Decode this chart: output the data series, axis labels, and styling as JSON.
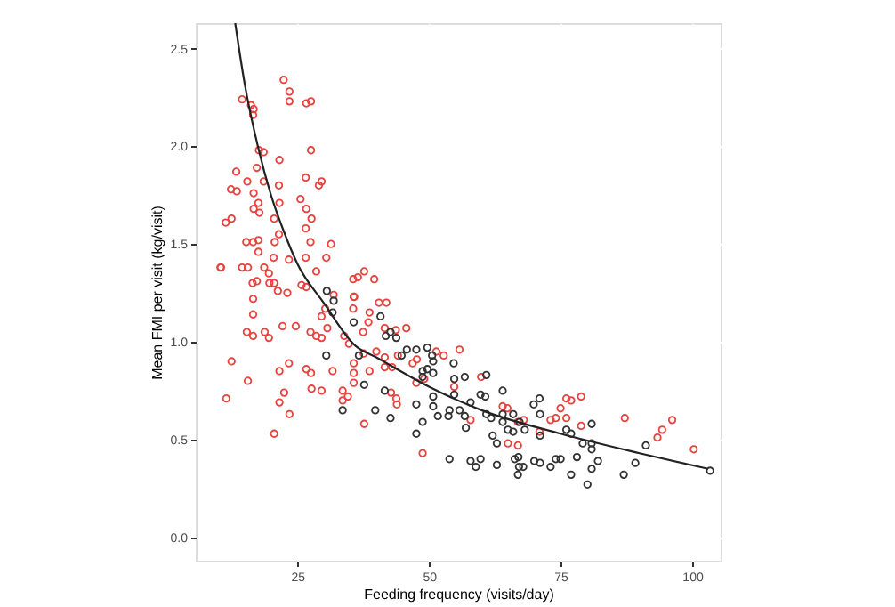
{
  "chart_data": {
    "type": "scatter",
    "xlabel": "Feeding frequency (visits/day)",
    "ylabel": "Mean FMI per visit (kg/visit)",
    "xlim": [
      5.7,
      105.4
    ],
    "ylim": [
      -0.12,
      2.63
    ],
    "xticks": [
      25,
      50,
      75,
      100
    ],
    "yticks": [
      {
        "value": 0,
        "label": "0.0"
      },
      {
        "value": 0.5,
        "label": "0.5"
      },
      {
        "value": 1,
        "label": "1.0"
      },
      {
        "value": 1.5,
        "label": "1.5"
      },
      {
        "value": 2,
        "label": "2.0"
      },
      {
        "value": 2.5,
        "label": "2.5"
      }
    ],
    "grid": true,
    "marker": "circle",
    "series": [
      {
        "color": "#e8433f",
        "x": [
          22.4,
          23.5,
          23.5,
          14.5,
          16.2,
          16.7,
          16.6,
          26.7,
          27.6,
          27.6,
          17.7,
          18.6,
          21.6,
          13.4,
          17.3,
          15.5,
          18.6,
          21.5,
          26.6,
          29.6,
          29.1,
          12.4,
          13.5,
          16.7,
          25.6,
          17.6,
          21.6,
          16.7,
          26.7,
          17.8,
          27.7,
          20.6,
          12.5,
          11.4,
          26.6,
          21.5,
          15.3,
          16.6,
          17.6,
          20.7,
          27.5,
          31.4,
          30.5,
          26.6,
          23.4,
          20.5,
          17.6,
          10.5,
          14.5,
          15.6,
          18.7,
          19.6,
          28.6,
          16.5,
          17.3,
          19.7,
          20.6,
          25.8,
          26.7,
          35.6,
          36.5,
          37.7,
          39.6,
          35.8,
          10.4,
          16.6,
          21.3,
          23.1,
          16.6,
          15.4,
          16.6,
          18.8,
          19.6,
          22.2,
          24.7,
          27.5,
          28.6,
          29.6,
          30.7,
          29.6,
          31.9,
          30.3,
          12.5,
          15.6,
          11.5,
          21.6,
          23.4,
          22.5,
          21.6,
          23.5,
          20.6,
          26.7,
          27.6,
          27.7,
          29.6,
          31.7,
          33.6,
          33.6,
          34.6,
          35.7,
          35.7,
          34.8,
          33.9,
          35.7,
          37.7,
          37.6,
          38.7,
          37.5,
          38.7,
          38.5,
          35.7,
          35.6,
          40.5,
          41.9,
          41.6,
          43.7,
          45.7,
          40.0,
          41.6,
          43.0,
          44.1,
          41.6,
          42.8,
          43.9,
          43.8,
          48.8,
          46.9,
          47.7,
          49.1,
          51.4,
          47.6,
          52.8,
          55.8,
          54.8,
          59.9,
          57.9,
          64.0,
          64.9,
          66.9,
          68.0,
          65.0,
          66.9,
          71.0,
          73.1,
          74.1,
          75.0,
          76.1,
          77.0,
          78.9,
          76.1,
          78.9,
          87.2,
          93.4,
          94.3,
          96.2,
          100.3
        ],
        "values": [
          2.34,
          2.28,
          2.23,
          2.24,
          2.21,
          2.19,
          2.16,
          2.22,
          2.23,
          1.98,
          1.98,
          1.97,
          1.93,
          1.87,
          1.89,
          1.82,
          1.82,
          1.8,
          1.84,
          1.82,
          1.8,
          1.78,
          1.77,
          1.76,
          1.73,
          1.71,
          1.71,
          1.68,
          1.68,
          1.66,
          1.63,
          1.63,
          1.63,
          1.61,
          1.58,
          1.55,
          1.51,
          1.51,
          1.52,
          1.51,
          1.51,
          1.5,
          1.43,
          1.43,
          1.42,
          1.43,
          1.46,
          1.38,
          1.38,
          1.38,
          1.38,
          1.35,
          1.36,
          1.3,
          1.31,
          1.3,
          1.3,
          1.29,
          1.28,
          1.32,
          1.33,
          1.36,
          1.32,
          1.23,
          1.38,
          1.22,
          1.26,
          1.25,
          1.14,
          1.05,
          1.03,
          1.05,
          1.02,
          1.08,
          1.08,
          1.05,
          1.03,
          1.02,
          1.07,
          1.13,
          1.24,
          1.17,
          0.9,
          0.8,
          0.71,
          0.85,
          0.89,
          0.74,
          0.69,
          0.63,
          0.53,
          0.86,
          0.84,
          0.76,
          0.75,
          0.85,
          0.75,
          0.7,
          0.72,
          0.84,
          0.79,
          0.99,
          1.03,
          0.89,
          0.58,
          0.94,
          0.85,
          1.05,
          1.15,
          1.1,
          1.23,
          1.17,
          1.2,
          1.2,
          1.07,
          1.06,
          1.07,
          0.95,
          0.92,
          0.87,
          0.93,
          0.87,
          0.74,
          0.68,
          0.71,
          0.43,
          0.89,
          0.91,
          0.81,
          0.95,
          0.79,
          0.93,
          0.96,
          0.77,
          0.82,
          0.6,
          0.67,
          0.66,
          0.59,
          0.6,
          0.48,
          0.47,
          0.54,
          0.6,
          0.61,
          0.66,
          0.71,
          0.7,
          0.72,
          0.61,
          0.57,
          0.61,
          0.51,
          0.55,
          0.6,
          0.45
        ]
      },
      {
        "color": "#333333",
        "x": [
          30.6,
          30.5,
          31.9,
          31.7,
          35.7,
          33.6,
          37.7,
          36.7,
          39.8,
          42.7,
          41.6,
          41.8,
          40.8,
          42.7,
          43.8,
          44.8,
          45.8,
          47.6,
          47.6,
          47.6,
          48.8,
          49.7,
          50.8,
          50.8,
          51.7,
          50.8,
          50.6,
          49.7,
          48.8,
          54.7,
          54.8,
          56.8,
          50.8,
          54.8,
          59.8,
          60.9,
          60.7,
          57.9,
          53.9,
          55.8,
          56.8,
          48.8,
          53.7,
          57.0,
          60.9,
          61.8,
          64.0,
          64.0,
          64.0,
          66.0,
          67.2,
          62.1,
          62.9,
          65.0,
          66.0,
          68.2,
          69.9,
          71.0,
          71.1,
          71.1,
          53.9,
          57.9,
          58.9,
          59.8,
          62.9,
          66.3,
          67.1,
          67.9,
          66.9,
          67.0,
          70.0,
          71.1,
          73.1,
          74.1,
          75.0,
          76.1,
          77.0,
          78.1,
          79.2,
          80.9,
          80.9,
          80.9,
          82.1,
          80.9,
          77.0,
          80.1,
          87.0,
          89.2,
          91.2,
          103.4
        ],
        "values": [
          1.26,
          0.93,
          1.21,
          1.15,
          1.1,
          0.65,
          0.78,
          0.93,
          0.65,
          0.61,
          0.75,
          1.03,
          1.13,
          1.05,
          1.02,
          0.93,
          0.96,
          0.96,
          0.68,
          0.53,
          0.85,
          0.97,
          0.9,
          0.84,
          0.62,
          0.67,
          0.93,
          0.86,
          0.82,
          0.89,
          0.81,
          0.82,
          0.72,
          0.73,
          0.73,
          0.83,
          0.72,
          0.69,
          0.65,
          0.65,
          0.62,
          0.59,
          0.62,
          0.56,
          0.63,
          0.61,
          0.75,
          0.63,
          0.59,
          0.63,
          0.59,
          0.52,
          0.48,
          0.55,
          0.54,
          0.55,
          0.68,
          0.71,
          0.63,
          0.52,
          0.4,
          0.39,
          0.36,
          0.4,
          0.37,
          0.4,
          0.36,
          0.36,
          0.32,
          0.41,
          0.39,
          0.38,
          0.36,
          0.4,
          0.4,
          0.55,
          0.53,
          0.41,
          0.48,
          0.58,
          0.48,
          0.45,
          0.39,
          0.35,
          0.32,
          0.27,
          0.32,
          0.38,
          0.47,
          0.34
        ]
      },
      {
        "type": "line",
        "marker": "none",
        "line_style": "solid",
        "color": "#222222",
        "x": [
          13.2,
          15,
          17.5,
          20,
          22.5,
          25,
          30,
          36,
          40,
          50,
          60,
          75,
          90,
          103
        ],
        "values": [
          2.63,
          2.32,
          2.0,
          1.75,
          1.56,
          1.4,
          1.2,
          0.98,
          0.92,
          0.77,
          0.65,
          0.53,
          0.43,
          0.35
        ]
      }
    ]
  }
}
